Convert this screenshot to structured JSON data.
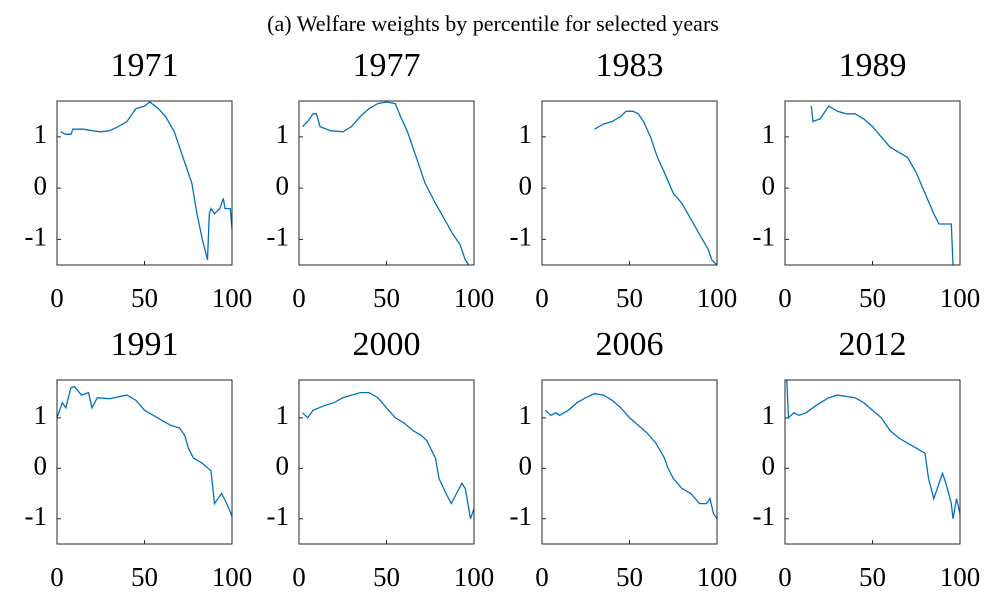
{
  "title": "(a) Welfare weights by percentile for selected years",
  "chart_data": [
    {
      "type": "line",
      "title": "1971",
      "xlim": [
        0,
        100
      ],
      "ylim": [
        -1.5,
        1.7
      ],
      "xticks": [
        0,
        50,
        100
      ],
      "yticks": [
        -1,
        0,
        1
      ],
      "color": "#0072bd",
      "x": [
        2,
        5,
        8,
        9,
        15,
        20,
        25,
        30,
        35,
        40,
        45,
        50,
        53,
        58,
        62,
        67,
        72,
        77,
        80,
        83,
        86,
        87,
        88,
        90,
        93,
        95,
        96,
        99,
        100
      ],
      "values": [
        1.1,
        1.05,
        1.05,
        1.15,
        1.15,
        1.12,
        1.1,
        1.12,
        1.2,
        1.3,
        1.55,
        1.6,
        1.68,
        1.55,
        1.4,
        1.1,
        0.6,
        0.1,
        -0.5,
        -1.0,
        -1.4,
        -0.5,
        -0.4,
        -0.5,
        -0.4,
        -0.2,
        -0.4,
        -0.4,
        -0.8
      ]
    },
    {
      "type": "line",
      "title": "1977",
      "xlim": [
        0,
        100
      ],
      "ylim": [
        -1.5,
        1.7
      ],
      "xticks": [
        0,
        50,
        100
      ],
      "yticks": [
        -1,
        0,
        1
      ],
      "color": "#0072bd",
      "x": [
        2,
        5,
        8,
        10,
        12,
        18,
        25,
        30,
        35,
        40,
        45,
        50,
        55,
        58,
        62,
        67,
        72,
        78,
        83,
        88,
        92,
        95,
        97
      ],
      "values": [
        1.2,
        1.3,
        1.45,
        1.45,
        1.2,
        1.12,
        1.1,
        1.2,
        1.4,
        1.55,
        1.65,
        1.68,
        1.65,
        1.4,
        1.1,
        0.6,
        0.1,
        -0.3,
        -0.6,
        -0.9,
        -1.1,
        -1.4,
        -1.5
      ]
    },
    {
      "type": "line",
      "title": "1983",
      "xlim": [
        0,
        100
      ],
      "ylim": [
        -1.5,
        1.7
      ],
      "xticks": [
        0,
        50,
        100
      ],
      "yticks": [
        -1,
        0,
        1
      ],
      "color": "#0072bd",
      "x": [
        30,
        35,
        40,
        45,
        48,
        52,
        55,
        58,
        62,
        66,
        70,
        75,
        80,
        85,
        90,
        95,
        97,
        100
      ],
      "values": [
        1.15,
        1.25,
        1.3,
        1.4,
        1.5,
        1.5,
        1.45,
        1.3,
        1.0,
        0.6,
        0.3,
        -0.1,
        -0.3,
        -0.6,
        -0.9,
        -1.2,
        -1.4,
        -1.5
      ]
    },
    {
      "type": "line",
      "title": "1989",
      "xlim": [
        0,
        100
      ],
      "ylim": [
        -1.5,
        1.7
      ],
      "xticks": [
        0,
        50,
        100
      ],
      "yticks": [
        -1,
        0,
        1
      ],
      "color": "#0072bd",
      "x": [
        15,
        16,
        20,
        25,
        30,
        35,
        40,
        45,
        50,
        55,
        60,
        65,
        70,
        75,
        80,
        85,
        88,
        92,
        95,
        96
      ],
      "values": [
        1.6,
        1.3,
        1.35,
        1.6,
        1.5,
        1.45,
        1.45,
        1.35,
        1.2,
        1.0,
        0.8,
        0.7,
        0.6,
        0.3,
        -0.1,
        -0.5,
        -0.7,
        -0.7,
        -0.7,
        -1.5
      ]
    },
    {
      "type": "line",
      "title": "1991",
      "xlim": [
        0,
        100
      ],
      "ylim": [
        -1.5,
        1.75
      ],
      "xticks": [
        0,
        50,
        100
      ],
      "yticks": [
        -1,
        0,
        1
      ],
      "color": "#0072bd",
      "x": [
        0,
        3,
        5,
        8,
        10,
        14,
        18,
        20,
        23,
        30,
        40,
        45,
        50,
        55,
        60,
        65,
        70,
        73,
        75,
        78,
        83,
        88,
        90,
        94,
        97,
        100
      ],
      "values": [
        1.0,
        1.3,
        1.2,
        1.6,
        1.62,
        1.45,
        1.5,
        1.2,
        1.4,
        1.38,
        1.45,
        1.35,
        1.15,
        1.05,
        0.95,
        0.85,
        0.8,
        0.65,
        0.4,
        0.2,
        0.1,
        -0.05,
        -0.7,
        -0.5,
        -0.7,
        -0.95
      ]
    },
    {
      "type": "line",
      "title": "2000",
      "xlim": [
        0,
        100
      ],
      "ylim": [
        -1.5,
        1.75
      ],
      "xticks": [
        0,
        50,
        100
      ],
      "yticks": [
        -1,
        0,
        1
      ],
      "color": "#0072bd",
      "x": [
        2,
        5,
        8,
        15,
        20,
        25,
        30,
        35,
        40,
        45,
        50,
        55,
        60,
        65,
        70,
        73,
        78,
        80,
        84,
        87,
        90,
        93,
        95,
        98,
        100
      ],
      "values": [
        1.1,
        1.0,
        1.15,
        1.25,
        1.3,
        1.4,
        1.45,
        1.5,
        1.5,
        1.4,
        1.2,
        1.0,
        0.9,
        0.75,
        0.65,
        0.55,
        0.2,
        -0.2,
        -0.5,
        -0.7,
        -0.5,
        -0.3,
        -0.4,
        -1.0,
        -0.8
      ]
    },
    {
      "type": "line",
      "title": "2006",
      "xlim": [
        0,
        100
      ],
      "ylim": [
        -1.5,
        1.75
      ],
      "xticks": [
        0,
        50,
        100
      ],
      "yticks": [
        -1,
        0,
        1
      ],
      "color": "#0072bd",
      "x": [
        2,
        5,
        8,
        10,
        15,
        20,
        25,
        30,
        35,
        40,
        45,
        50,
        55,
        60,
        65,
        70,
        72,
        75,
        80,
        85,
        90,
        94,
        96,
        98,
        100
      ],
      "values": [
        1.15,
        1.05,
        1.1,
        1.05,
        1.15,
        1.3,
        1.4,
        1.48,
        1.45,
        1.35,
        1.2,
        1.0,
        0.85,
        0.7,
        0.5,
        0.2,
        0.0,
        -0.2,
        -0.4,
        -0.5,
        -0.7,
        -0.7,
        -0.6,
        -0.9,
        -1.0
      ]
    },
    {
      "type": "line",
      "title": "2012",
      "xlim": [
        0,
        100
      ],
      "ylim": [
        -1.5,
        1.75
      ],
      "xticks": [
        0,
        50,
        100
      ],
      "yticks": [
        -1,
        0,
        1
      ],
      "color": "#0072bd",
      "x": [
        1,
        2,
        5,
        8,
        12,
        18,
        25,
        30,
        40,
        45,
        50,
        55,
        60,
        65,
        70,
        75,
        80,
        82,
        85,
        88,
        90,
        92,
        95,
        96,
        98,
        100
      ],
      "values": [
        1.75,
        1.0,
        1.1,
        1.05,
        1.1,
        1.25,
        1.4,
        1.45,
        1.4,
        1.3,
        1.15,
        1.0,
        0.75,
        0.6,
        0.5,
        0.4,
        0.3,
        -0.2,
        -0.6,
        -0.3,
        -0.1,
        -0.3,
        -0.7,
        -1.0,
        -0.6,
        -0.9
      ]
    }
  ]
}
